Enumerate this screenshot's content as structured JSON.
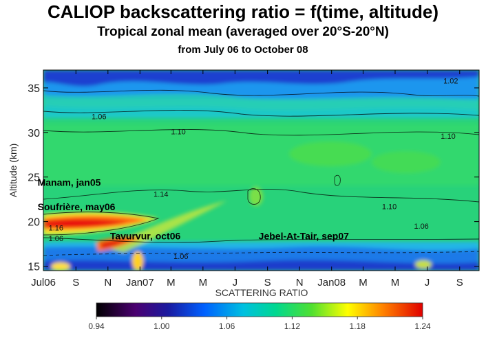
{
  "chart_data": {
    "type": "heatmap",
    "title": "CALIOP backscattering ratio = f(time, altitude)",
    "subtitle": "Tropical zonal mean (averaged over 20°S-20°N)",
    "subtitle2": "from July 06 to October 08",
    "ylabel": "Altitude (km)",
    "ylim": [
      14.5,
      37
    ],
    "yticks": [
      15,
      20,
      25,
      30,
      35
    ],
    "xlim": [
      "2006-07-01",
      "2008-10-08"
    ],
    "xticks": [
      {
        "label": "Jul06",
        "date": "2006-07-01"
      },
      {
        "label": "S",
        "date": "2006-09-01"
      },
      {
        "label": "N",
        "date": "2006-11-01"
      },
      {
        "label": "Jan07",
        "date": "2007-01-01"
      },
      {
        "label": "M",
        "date": "2007-03-01"
      },
      {
        "label": "M",
        "date": "2007-05-01"
      },
      {
        "label": "J",
        "date": "2007-07-01"
      },
      {
        "label": "S",
        "date": "2007-09-01"
      },
      {
        "label": "N",
        "date": "2007-11-01"
      },
      {
        "label": "Jan08",
        "date": "2008-01-01"
      },
      {
        "label": "M",
        "date": "2008-03-01"
      },
      {
        "label": "M",
        "date": "2008-05-01"
      },
      {
        "label": "J",
        "date": "2008-07-01"
      },
      {
        "label": "S",
        "date": "2008-09-01"
      }
    ],
    "colorbar": {
      "label": "SCATTERING RATIO",
      "range": [
        0.94,
        1.24
      ],
      "ticks": [
        "0.94",
        "1.00",
        "1.06",
        "1.12",
        "1.18",
        "1.24"
      ]
    },
    "contour_labels": [
      {
        "text": "1.06",
        "date": "2006-10-15",
        "alt": 31.5
      },
      {
        "text": "1.10",
        "date": "2007-03-15",
        "alt": 29.8
      },
      {
        "text": "1.14",
        "date": "2007-02-10",
        "alt": 22.8
      },
      {
        "text": "1.16",
        "date": "2006-07-25",
        "alt": 19.0
      },
      {
        "text": "1.06",
        "date": "2006-07-25",
        "alt": 17.8
      },
      {
        "text": "1.06",
        "date": "2007-03-20",
        "alt": 15.8
      },
      {
        "text": "1.10",
        "date": "2008-04-20",
        "alt": 21.4
      },
      {
        "text": "1.06",
        "date": "2008-06-20",
        "alt": 19.2
      },
      {
        "text": "1.10",
        "date": "2008-08-10",
        "alt": 29.3
      },
      {
        "text": "1.02",
        "date": "2008-08-15",
        "alt": 35.5
      }
    ],
    "annotations": [
      {
        "text": "Manam, jan05",
        "date": "2006-06-20",
        "alt": 24.0
      },
      {
        "text": "Soufrière, may06",
        "date": "2006-06-20",
        "alt": 21.3
      },
      {
        "text": "Tavurvur, oct06",
        "date": "2006-11-05",
        "alt": 18.0
      },
      {
        "text": "Jebel-At-Tair, sep07",
        "date": "2007-08-15",
        "alt": 18.0
      }
    ]
  }
}
